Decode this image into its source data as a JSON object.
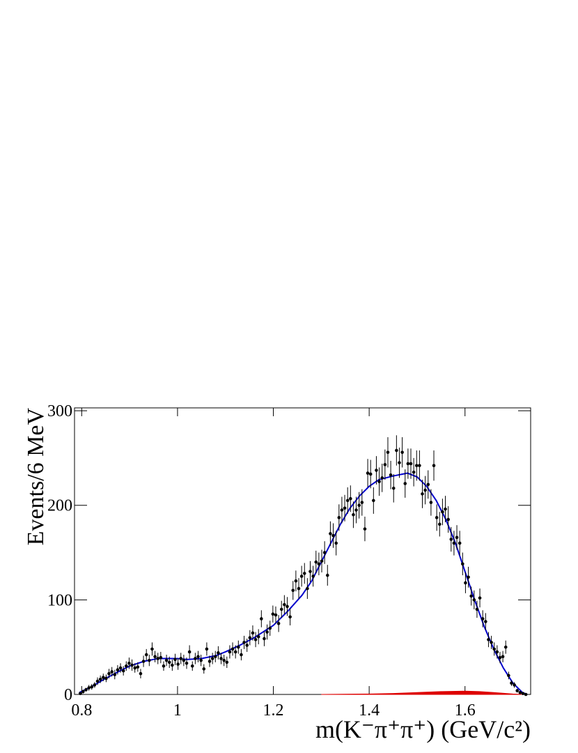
{
  "chart_data": {
    "type": "scatter",
    "x_label": "m(K⁻π⁺π⁺) (GeV/c²)",
    "y_label": "Events/6 MeV",
    "xlim": [
      0.785,
      1.737
    ],
    "ylim": [
      0,
      303
    ],
    "xticks": [
      0.8,
      1,
      1.2,
      1.4,
      1.6
    ],
    "yticks": [
      0,
      100,
      200,
      300
    ],
    "color": "#000000",
    "x": [
      0.797,
      0.803,
      0.809,
      0.815,
      0.821,
      0.827,
      0.833,
      0.839,
      0.845,
      0.851,
      0.857,
      0.863,
      0.869,
      0.875,
      0.881,
      0.887,
      0.893,
      0.899,
      0.905,
      0.911,
      0.917,
      0.923,
      0.929,
      0.935,
      0.941,
      0.947,
      0.953,
      0.959,
      0.965,
      0.971,
      0.977,
      0.983,
      0.989,
      0.995,
      1.001,
      1.007,
      1.013,
      1.019,
      1.025,
      1.031,
      1.037,
      1.043,
      1.049,
      1.055,
      1.061,
      1.067,
      1.073,
      1.079,
      1.085,
      1.091,
      1.097,
      1.103,
      1.109,
      1.115,
      1.121,
      1.127,
      1.133,
      1.139,
      1.145,
      1.151,
      1.157,
      1.163,
      1.169,
      1.175,
      1.181,
      1.187,
      1.193,
      1.199,
      1.205,
      1.211,
      1.217,
      1.223,
      1.229,
      1.235,
      1.241,
      1.247,
      1.253,
      1.259,
      1.265,
      1.271,
      1.277,
      1.283,
      1.289,
      1.295,
      1.301,
      1.307,
      1.313,
      1.319,
      1.325,
      1.331,
      1.337,
      1.343,
      1.349,
      1.355,
      1.361,
      1.367,
      1.373,
      1.379,
      1.385,
      1.391,
      1.397,
      1.403,
      1.409,
      1.415,
      1.421,
      1.427,
      1.433,
      1.439,
      1.445,
      1.451,
      1.457,
      1.463,
      1.469,
      1.475,
      1.481,
      1.487,
      1.493,
      1.499,
      1.505,
      1.511,
      1.517,
      1.523,
      1.529,
      1.535,
      1.541,
      1.547,
      1.553,
      1.559,
      1.565,
      1.571,
      1.577,
      1.583,
      1.589,
      1.595,
      1.601,
      1.607,
      1.613,
      1.619,
      1.625,
      1.631,
      1.637,
      1.643,
      1.649,
      1.655,
      1.661,
      1.667,
      1.673,
      1.679,
      1.685,
      1.691,
      1.697,
      1.703,
      1.709,
      1.715,
      1.721,
      1.727
    ],
    "values": [
      1,
      3,
      5,
      7,
      8,
      10,
      14,
      16,
      18,
      17,
      22,
      24,
      21,
      26,
      28,
      25,
      30,
      33,
      31,
      28,
      29,
      22,
      35,
      42,
      36,
      48,
      40,
      38,
      39,
      30,
      36,
      34,
      31,
      37,
      32,
      38,
      36,
      33,
      45,
      30,
      38,
      40,
      36,
      27,
      48,
      35,
      38,
      40,
      44,
      38,
      36,
      34,
      45,
      48,
      45,
      50,
      42,
      55,
      52,
      60,
      65,
      58,
      61,
      80,
      59,
      66,
      70,
      85,
      84,
      75,
      90,
      95,
      93,
      82,
      110,
      120,
      112,
      125,
      128,
      112,
      130,
      125,
      140,
      138,
      141,
      150,
      126,
      170,
      168,
      160,
      187,
      195,
      197,
      205,
      207,
      190,
      195,
      200,
      203,
      175,
      234,
      233,
      205,
      237,
      225,
      229,
      243,
      256,
      232,
      218,
      258,
      245,
      256,
      223,
      244,
      244,
      235,
      242,
      242,
      212,
      216,
      222,
      203,
      242,
      187,
      180,
      193,
      196,
      185,
      164,
      160,
      166,
      160,
      138,
      118,
      124,
      104,
      100,
      90,
      102,
      80,
      77,
      58,
      55,
      48,
      45,
      39,
      40,
      50,
      20,
      12,
      10,
      4,
      2,
      1,
      0
    ],
    "errors": [
      1,
      2,
      2,
      3,
      3,
      3,
      4,
      4,
      4,
      4,
      5,
      5,
      5,
      5,
      5,
      5,
      5,
      6,
      6,
      5,
      5,
      5,
      6,
      6,
      6,
      7,
      6,
      6,
      6,
      5,
      6,
      6,
      6,
      6,
      6,
      6,
      6,
      6,
      7,
      5,
      6,
      6,
      6,
      5,
      7,
      6,
      6,
      6,
      7,
      6,
      6,
      6,
      7,
      7,
      7,
      7,
      6,
      7,
      7,
      8,
      8,
      8,
      8,
      9,
      8,
      8,
      8,
      9,
      9,
      9,
      9,
      10,
      10,
      9,
      10,
      11,
      11,
      11,
      11,
      11,
      11,
      11,
      12,
      12,
      12,
      12,
      11,
      13,
      13,
      13,
      14,
      14,
      14,
      14,
      14,
      14,
      14,
      14,
      14,
      13,
      15,
      15,
      14,
      15,
      15,
      15,
      16,
      16,
      15,
      15,
      16,
      16,
      16,
      15,
      16,
      16,
      15,
      16,
      16,
      15,
      15,
      15,
      14,
      16,
      14,
      13,
      14,
      14,
      14,
      13,
      13,
      13,
      13,
      12,
      11,
      11,
      10,
      10,
      9,
      10,
      9,
      9,
      8,
      7,
      7,
      7,
      6,
      6,
      7,
      4,
      3,
      3,
      2,
      1,
      1,
      0
    ],
    "fit": {
      "color": "#0000cc",
      "x": [
        0.795,
        0.82,
        0.85,
        0.88,
        0.9,
        0.93,
        0.96,
        1.0,
        1.02,
        1.05,
        1.08,
        1.1,
        1.13,
        1.16,
        1.2,
        1.23,
        1.26,
        1.28,
        1.3,
        1.32,
        1.34,
        1.36,
        1.38,
        1.4,
        1.42,
        1.45,
        1.48,
        1.5,
        1.52,
        1.54,
        1.56,
        1.58,
        1.6,
        1.62,
        1.64,
        1.66,
        1.68,
        1.7,
        1.72,
        1.73
      ],
      "values": [
        2,
        8,
        17,
        25,
        30,
        35,
        38,
        38,
        37,
        38,
        41,
        45,
        52,
        60,
        73,
        88,
        105,
        120,
        140,
        160,
        180,
        197,
        210,
        220,
        227,
        231,
        234,
        230,
        220,
        205,
        185,
        160,
        130,
        100,
        72,
        48,
        28,
        12,
        2,
        0
      ]
    },
    "background": {
      "color": "#dd0000",
      "x": [
        1.3,
        1.4,
        1.45,
        1.5,
        1.55,
        1.6,
        1.63,
        1.66,
        1.7,
        1.72
      ],
      "values": [
        0,
        0.5,
        1,
        2,
        3,
        3.5,
        3,
        2,
        0.5,
        0
      ]
    }
  }
}
